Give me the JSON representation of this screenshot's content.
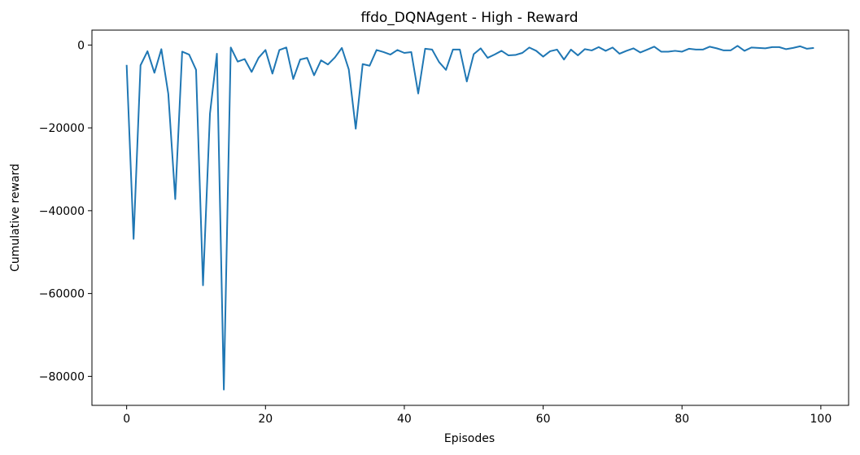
{
  "chart_data": {
    "type": "line",
    "title": "ffdo_DQNAgent - High - Reward",
    "xlabel": "Episodes",
    "ylabel": "Cumulative reward",
    "xlim": [
      -5,
      104
    ],
    "ylim": [
      -87000,
      3600
    ],
    "x_ticks": [
      0,
      20,
      40,
      60,
      80,
      100
    ],
    "y_ticks": [
      0,
      -20000,
      -40000,
      -60000,
      -80000
    ],
    "x_tick_labels": [
      "0",
      "20",
      "40",
      "60",
      "80",
      "100"
    ],
    "y_tick_labels": [
      "0",
      "−20000",
      "−40000",
      "−60000",
      "−80000"
    ],
    "grid": false,
    "color": "#1f77b4",
    "series": [
      {
        "x": [
          0,
          1,
          2,
          3,
          4,
          5,
          6,
          7,
          8,
          9,
          10,
          11,
          12,
          13,
          14,
          15,
          16,
          17,
          18,
          19,
          20,
          21,
          22,
          23,
          24,
          25,
          26,
          27,
          28,
          29,
          30,
          31,
          32,
          33,
          34,
          35,
          36,
          37,
          38,
          39,
          40,
          41,
          42,
          43,
          44,
          45,
          46,
          47,
          48,
          49,
          50,
          51,
          52,
          53,
          54,
          55,
          56,
          57,
          58,
          59,
          60,
          61,
          62,
          63,
          64,
          65,
          66,
          67,
          68,
          69,
          70,
          71,
          72,
          73,
          74,
          75,
          76,
          77,
          78,
          79,
          80,
          81,
          82,
          83,
          84,
          85,
          86,
          87,
          88,
          89,
          90,
          91,
          92,
          93,
          94,
          95,
          96,
          97,
          98,
          99
        ],
        "values": [
          -4800,
          -46800,
          -4900,
          -1500,
          -6700,
          -1000,
          -11800,
          -37200,
          -1600,
          -2300,
          -6000,
          -58000,
          -16600,
          -2100,
          -83200,
          -600,
          -4000,
          -3400,
          -6500,
          -3100,
          -1200,
          -6900,
          -1200,
          -600,
          -8200,
          -3500,
          -3100,
          -7300,
          -3700,
          -4700,
          -3000,
          -700,
          -5900,
          -20200,
          -4600,
          -5000,
          -1200,
          -1700,
          -2300,
          -1200,
          -1900,
          -1700,
          -11700,
          -900,
          -1100,
          -4100,
          -6000,
          -1100,
          -1100,
          -8800,
          -2200,
          -800,
          -3100,
          -2300,
          -1400,
          -2500,
          -2400,
          -1900,
          -600,
          -1400,
          -2800,
          -1500,
          -1100,
          -3500,
          -1100,
          -2500,
          -1000,
          -1300,
          -500,
          -1400,
          -600,
          -2100,
          -1400,
          -800,
          -1800,
          -1100,
          -400,
          -1600,
          -1600,
          -1400,
          -1600,
          -900,
          -1100,
          -1100,
          -400,
          -800,
          -1300,
          -1300,
          -200,
          -1400,
          -600,
          -700,
          -800,
          -500,
          -500,
          -1000,
          -700,
          -300,
          -900,
          -700
        ]
      }
    ]
  }
}
